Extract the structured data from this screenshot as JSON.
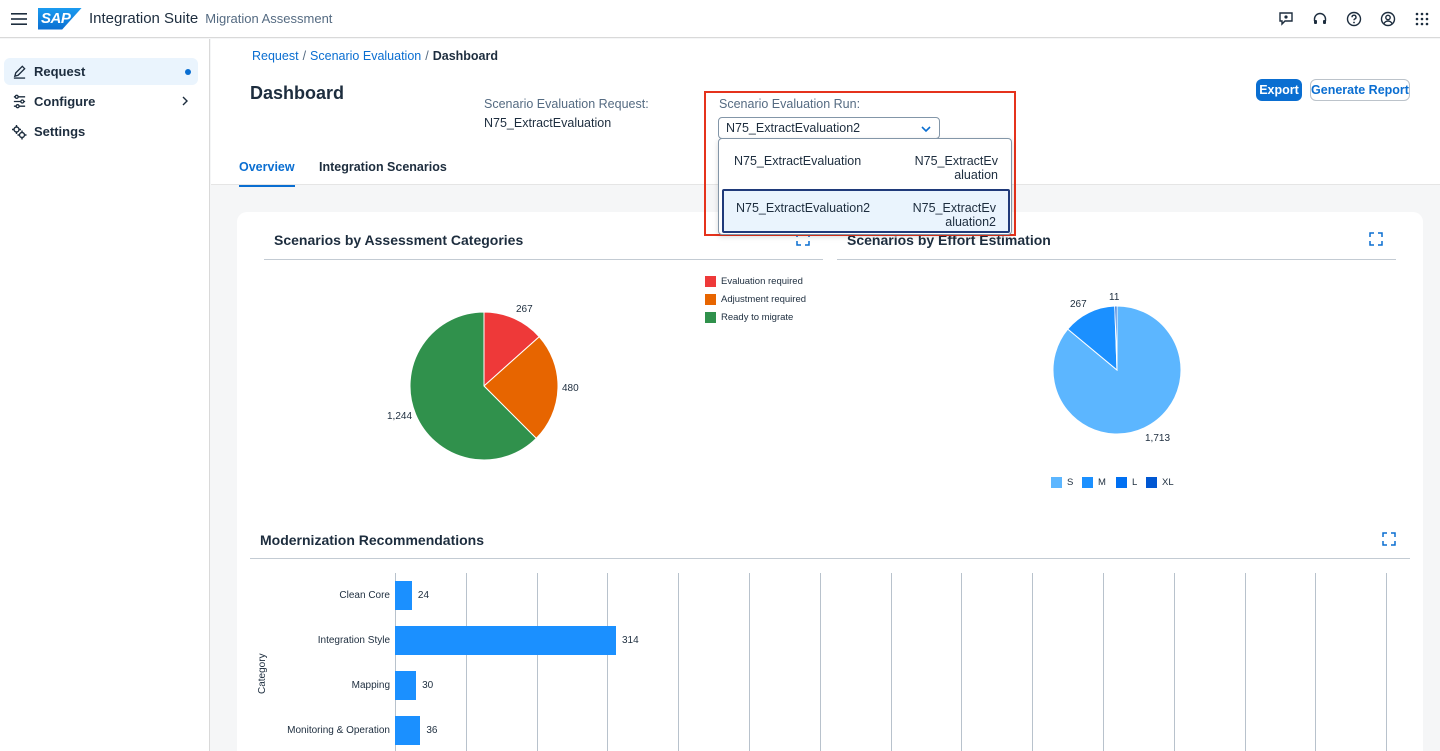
{
  "shell": {
    "logo": "SAP",
    "product": "Integration Suite",
    "subtitle": "Migration Assessment",
    "icons": [
      "hamburger-icon",
      "feedback-icon",
      "headset-icon",
      "help-icon",
      "user-icon",
      "apps-grid-icon"
    ]
  },
  "sidebar": {
    "items": [
      {
        "label": "Request",
        "icon": "edit-icon",
        "active": true
      },
      {
        "label": "Configure",
        "icon": "sliders-icon"
      },
      {
        "label": "Settings",
        "icon": "gears-icon"
      }
    ]
  },
  "breadcrumb": {
    "items": [
      "Request",
      "Scenario Evaluation"
    ],
    "current": "Dashboard"
  },
  "header": {
    "title": "Dashboard",
    "request_label": "Scenario Evaluation Request:",
    "request_value": "N75_ExtractEvaluation",
    "run_label": "Scenario Evaluation Run:",
    "run_value": "N75_ExtractEvaluation2",
    "export_label": "Export",
    "report_label": "Generate Report"
  },
  "tabs": [
    {
      "label": "Overview",
      "selected": true
    },
    {
      "label": "Integration Scenarios"
    }
  ],
  "dropdown": {
    "options": [
      {
        "name": "N75_ExtractEvaluation",
        "desc": "N75_ExtractEvaluation"
      },
      {
        "name": "N75_ExtractEvaluation2",
        "desc": "N75_ExtractEvaluation2",
        "selected": true
      }
    ]
  },
  "chart_data": [
    {
      "type": "pie",
      "title": "Scenarios by Assessment Categories",
      "labels": [
        "Evaluation required",
        "Adjustment required",
        "Ready to migrate"
      ],
      "values": [
        267,
        480,
        1244
      ],
      "value_labels": [
        "267",
        "480",
        "1,244"
      ],
      "colors": [
        "#ee3939",
        "#e76500",
        "#30914c"
      ],
      "legend": "right"
    },
    {
      "type": "pie",
      "title": "Scenarios by Effort Estimation",
      "labels": [
        "S",
        "M",
        "L",
        "XL"
      ],
      "values": [
        1713,
        267,
        0,
        11
      ],
      "value_labels": [
        "1,713",
        "267",
        "",
        "11"
      ],
      "colors": [
        "#5cb6ff",
        "#1b90ff",
        "#0070f2",
        "#0057d2"
      ],
      "legend": "bottom"
    },
    {
      "type": "bar",
      "orientation": "horizontal",
      "title": "Modernization Recommendations",
      "ylabel": "Category",
      "categories": [
        "Clean Core",
        "Integration Style",
        "Mapping",
        "Monitoring & Operation"
      ],
      "values": [
        24,
        314,
        30,
        36
      ],
      "color": "#1b90ff"
    }
  ]
}
